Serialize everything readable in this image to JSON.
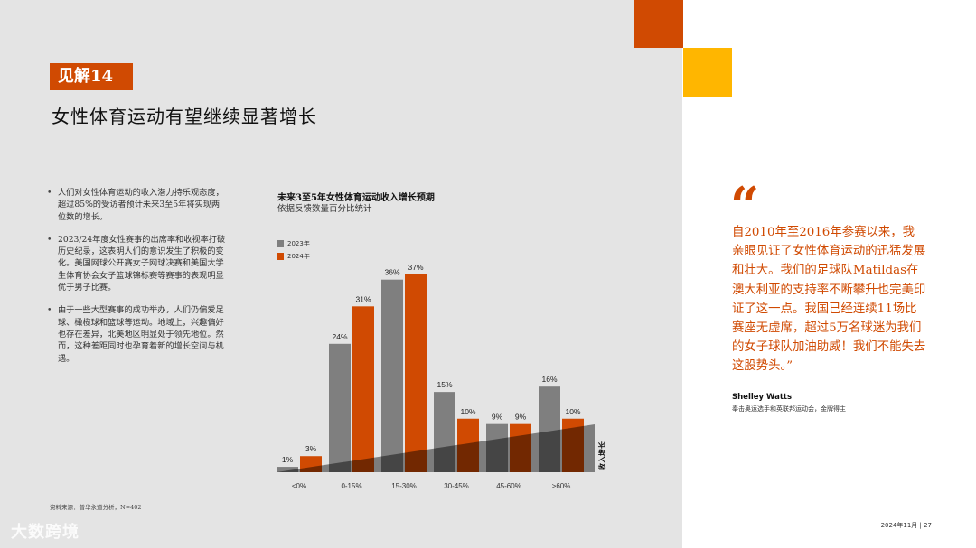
{
  "header": {
    "badge": "见解14",
    "title": "女性体育运动有望继续显著增长"
  },
  "bullets": [
    "人们对女性体育运动的收入潜力持乐观态度，超过85%的受访者预计未来3至5年将实现两位数的增长。",
    "2023/24年度女性赛事的出席率和收视率打破历史纪录，这表明人们的意识发生了积极的变化。美国网球公开赛女子网球决赛和美国大学生体育协会女子篮球锦标赛等赛事的表现明显优于男子比赛。",
    "由于一些大型赛事的成功举办，人们仍偏爱足球、橄榄球和篮球等运动。地域上，兴趣偏好也存在差异，北美地区明显处于领先地位。然而，这种差距同时也孕育着新的增长空间与机遇。"
  ],
  "source": "资料来源：普华永道分析，N=402",
  "chart_data": {
    "type": "bar",
    "title": "未来3至5年女性体育运动收入增长预期",
    "subtitle": "依据反馈数量百分比统计",
    "categories": [
      "<0%",
      "0-15%",
      "15-30%",
      "30-45%",
      "45-60%",
      ">60%"
    ],
    "series": [
      {
        "name": "2023年",
        "values": [
          1,
          24,
          36,
          15,
          9,
          16
        ],
        "labels": [
          "1%",
          "24%",
          "36%",
          "15%",
          "9%",
          "16%"
        ],
        "color": "#7f7f7f"
      },
      {
        "name": "2024年",
        "values": [
          3,
          31,
          37,
          10,
          9,
          10
        ],
        "labels": [
          "3%",
          "31%",
          "37%",
          "10%",
          "9%",
          "10%"
        ],
        "color": "#d04a02"
      }
    ],
    "ylim": [
      0,
      40
    ],
    "grid": false,
    "legend": "top-left",
    "annotation": "收入增长"
  },
  "quote": {
    "mark": "“",
    "text": "自2010年至2016年参赛以来，我亲眼见证了女性体育运动的迅猛发展和壮大。我们的足球队Matildas在澳大利亚的支持率不断攀升也完美印证了这一点。我国已经连续11场比赛座无虚席，超过5万名球迷为我们的女子球队加油助威！我们不能失去这股势头。”",
    "author": "Shelley Watts",
    "author_role": "奉击奥运选手和英联邦运动会，金牌得主"
  },
  "footer": {
    "page": "2024年11月 | 27",
    "watermark": "大数跨境"
  },
  "colors": {
    "accent": "#d04a02",
    "yellow": "#ffb600",
    "panel": "#e4e4e4"
  }
}
